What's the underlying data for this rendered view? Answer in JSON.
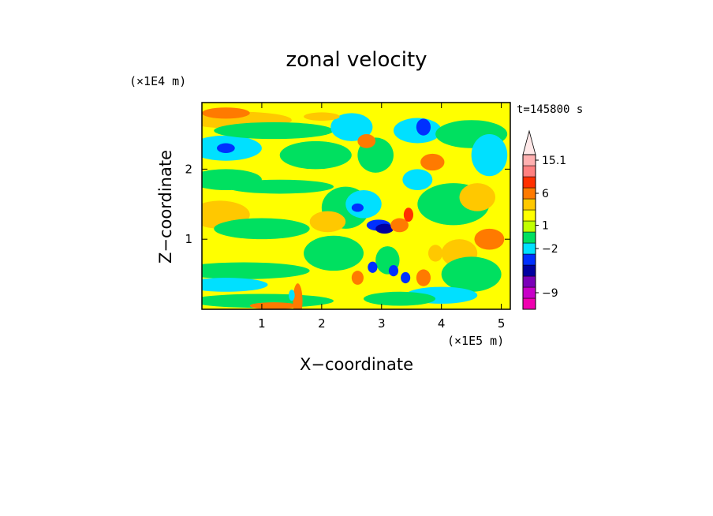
{
  "chart_data": {
    "type": "heatmap",
    "title": "zonal velocity",
    "xlabel": "X−coordinate",
    "ylabel": "Z−coordinate",
    "x_unit": "(×1E5 m)",
    "y_unit": "(×1E4 m)",
    "time_label": "t=145800 s",
    "xlim": [
      0,
      5.15
    ],
    "ylim": [
      0,
      2.95
    ],
    "xticks": [
      {
        "value": 1,
        "label": "1"
      },
      {
        "value": 2,
        "label": "2"
      },
      {
        "value": 3,
        "label": "3"
      },
      {
        "value": 4,
        "label": "4"
      },
      {
        "value": 5,
        "label": "5"
      }
    ],
    "yticks": [
      {
        "value": 1,
        "label": "1"
      },
      {
        "value": 2,
        "label": "2"
      }
    ],
    "colorbar": {
      "levels": [
        {
          "color": "#f000b0"
        },
        {
          "color": "#c800c8"
        },
        {
          "color": "#7a00b8"
        },
        {
          "color": "#0000a0"
        },
        {
          "color": "#0030ff"
        },
        {
          "color": "#00e0ff"
        },
        {
          "color": "#00e060"
        },
        {
          "color": "#c0ff00"
        },
        {
          "color": "#ffff00"
        },
        {
          "color": "#ffc800"
        },
        {
          "color": "#ff7a00"
        },
        {
          "color": "#ff3000"
        },
        {
          "color": "#ff8080"
        },
        {
          "color": "#ffb0b0"
        }
      ],
      "labels": [
        {
          "text": "−9",
          "level": 1.5
        },
        {
          "text": "−2",
          "level": 5.5
        },
        {
          "text": "1",
          "level": 7.6
        },
        {
          "text": "6",
          "level": 10.5
        },
        {
          "text": "15.1",
          "level": 13.5
        }
      ],
      "extend_max_color": "#ffe8e8"
    },
    "field_colors": {
      "background": "#ffff00",
      "weak_negative": "#00e060",
      "moderate_negative": "#00e0ff",
      "strong_negative": "#0030ff",
      "very_strong_negative": "#0000a0",
      "weak_positive": "#ffc800",
      "moderate_positive": "#ff7a00",
      "strong_positive": "#ff3000"
    },
    "features": [
      {
        "x": 0.4,
        "z": 2.3,
        "sx": 0.6,
        "sz": 0.18,
        "level": "moderate_negative"
      },
      {
        "x": 0.4,
        "z": 2.3,
        "sx": 0.15,
        "sz": 0.07,
        "level": "strong_negative"
      },
      {
        "x": 0.6,
        "z": 2.7,
        "sx": 0.9,
        "sz": 0.12,
        "level": "weak_positive"
      },
      {
        "x": 1.2,
        "z": 2.55,
        "sx": 1.0,
        "sz": 0.12,
        "level": "weak_negative"
      },
      {
        "x": 0.4,
        "z": 1.85,
        "sx": 0.6,
        "sz": 0.15,
        "level": "weak_negative"
      },
      {
        "x": 1.3,
        "z": 1.75,
        "sx": 0.9,
        "sz": 0.1,
        "level": "weak_negative"
      },
      {
        "x": 0.3,
        "z": 1.35,
        "sx": 0.5,
        "sz": 0.2,
        "level": "weak_positive"
      },
      {
        "x": 1.0,
        "z": 1.15,
        "sx": 0.8,
        "sz": 0.15,
        "level": "weak_negative"
      },
      {
        "x": 0.7,
        "z": 0.55,
        "sx": 1.1,
        "sz": 0.12,
        "level": "weak_negative"
      },
      {
        "x": 0.4,
        "z": 0.35,
        "sx": 0.7,
        "sz": 0.1,
        "level": "moderate_negative"
      },
      {
        "x": 1.0,
        "z": 0.12,
        "sx": 1.2,
        "sz": 0.1,
        "level": "weak_negative"
      },
      {
        "x": 1.9,
        "z": 2.2,
        "sx": 0.6,
        "sz": 0.2,
        "level": "weak_negative"
      },
      {
        "x": 2.4,
        "z": 1.45,
        "sx": 0.4,
        "sz": 0.3,
        "level": "weak_negative"
      },
      {
        "x": 2.2,
        "z": 0.8,
        "sx": 0.5,
        "sz": 0.25,
        "level": "weak_negative"
      },
      {
        "x": 2.5,
        "z": 2.6,
        "sx": 0.35,
        "sz": 0.2,
        "level": "moderate_negative"
      },
      {
        "x": 2.9,
        "z": 2.2,
        "sx": 0.3,
        "sz": 0.25,
        "level": "weak_negative"
      },
      {
        "x": 2.7,
        "z": 1.5,
        "sx": 0.3,
        "sz": 0.2,
        "level": "moderate_negative"
      },
      {
        "x": 2.95,
        "z": 1.2,
        "sx": 0.2,
        "sz": 0.08,
        "level": "strong_negative"
      },
      {
        "x": 3.05,
        "z": 1.15,
        "sx": 0.15,
        "sz": 0.07,
        "level": "very_strong_negative"
      },
      {
        "x": 3.3,
        "z": 1.2,
        "sx": 0.15,
        "sz": 0.1,
        "level": "moderate_positive"
      },
      {
        "x": 3.45,
        "z": 1.35,
        "sx": 0.08,
        "sz": 0.1,
        "level": "strong_positive"
      },
      {
        "x": 2.6,
        "z": 1.45,
        "sx": 0.1,
        "sz": 0.06,
        "level": "strong_negative"
      },
      {
        "x": 2.75,
        "z": 2.4,
        "sx": 0.15,
        "sz": 0.1,
        "level": "moderate_positive"
      },
      {
        "x": 3.6,
        "z": 2.55,
        "sx": 0.4,
        "sz": 0.18,
        "level": "moderate_negative"
      },
      {
        "x": 3.7,
        "z": 2.6,
        "sx": 0.12,
        "sz": 0.12,
        "level": "strong_negative"
      },
      {
        "x": 3.85,
        "z": 2.1,
        "sx": 0.2,
        "sz": 0.12,
        "level": "moderate_positive"
      },
      {
        "x": 3.6,
        "z": 1.85,
        "sx": 0.25,
        "sz": 0.15,
        "level": "moderate_negative"
      },
      {
        "x": 4.2,
        "z": 1.5,
        "sx": 0.6,
        "sz": 0.3,
        "level": "weak_negative"
      },
      {
        "x": 4.6,
        "z": 1.6,
        "sx": 0.3,
        "sz": 0.2,
        "level": "weak_positive"
      },
      {
        "x": 4.5,
        "z": 2.5,
        "sx": 0.6,
        "sz": 0.2,
        "level": "weak_negative"
      },
      {
        "x": 4.8,
        "z": 2.2,
        "sx": 0.3,
        "sz": 0.3,
        "level": "moderate_negative"
      },
      {
        "x": 4.8,
        "z": 1.0,
        "sx": 0.25,
        "sz": 0.15,
        "level": "moderate_positive"
      },
      {
        "x": 4.3,
        "z": 0.8,
        "sx": 0.3,
        "sz": 0.2,
        "level": "weak_positive"
      },
      {
        "x": 4.5,
        "z": 0.5,
        "sx": 0.5,
        "sz": 0.25,
        "level": "weak_negative"
      },
      {
        "x": 4.0,
        "z": 0.2,
        "sx": 0.6,
        "sz": 0.12,
        "level": "moderate_negative"
      },
      {
        "x": 3.1,
        "z": 0.7,
        "sx": 0.2,
        "sz": 0.2,
        "level": "weak_negative"
      },
      {
        "x": 3.2,
        "z": 0.55,
        "sx": 0.08,
        "sz": 0.08,
        "level": "strong_negative"
      },
      {
        "x": 2.85,
        "z": 0.6,
        "sx": 0.08,
        "sz": 0.08,
        "level": "strong_negative"
      },
      {
        "x": 3.4,
        "z": 0.45,
        "sx": 0.08,
        "sz": 0.08,
        "level": "strong_negative"
      },
      {
        "x": 2.6,
        "z": 0.45,
        "sx": 0.1,
        "sz": 0.1,
        "level": "moderate_positive"
      },
      {
        "x": 3.7,
        "z": 0.45,
        "sx": 0.12,
        "sz": 0.12,
        "level": "moderate_positive"
      },
      {
        "x": 3.9,
        "z": 0.8,
        "sx": 0.12,
        "sz": 0.12,
        "level": "weak_positive"
      },
      {
        "x": 1.6,
        "z": 0.12,
        "sx": 0.08,
        "sz": 0.25,
        "level": "moderate_positive"
      },
      {
        "x": 1.5,
        "z": 0.2,
        "sx": 0.05,
        "sz": 0.08,
        "level": "moderate_negative"
      },
      {
        "x": 1.2,
        "z": 0.05,
        "sx": 0.4,
        "sz": 0.05,
        "level": "moderate_positive"
      },
      {
        "x": 0.4,
        "z": 2.8,
        "sx": 0.4,
        "sz": 0.08,
        "level": "moderate_positive"
      },
      {
        "x": 2.0,
        "z": 2.75,
        "sx": 0.3,
        "sz": 0.06,
        "level": "weak_positive"
      },
      {
        "x": 3.3,
        "z": 0.15,
        "sx": 0.6,
        "sz": 0.1,
        "level": "weak_negative"
      },
      {
        "x": 2.1,
        "z": 1.25,
        "sx": 0.3,
        "sz": 0.15,
        "level": "weak_positive"
      }
    ]
  }
}
